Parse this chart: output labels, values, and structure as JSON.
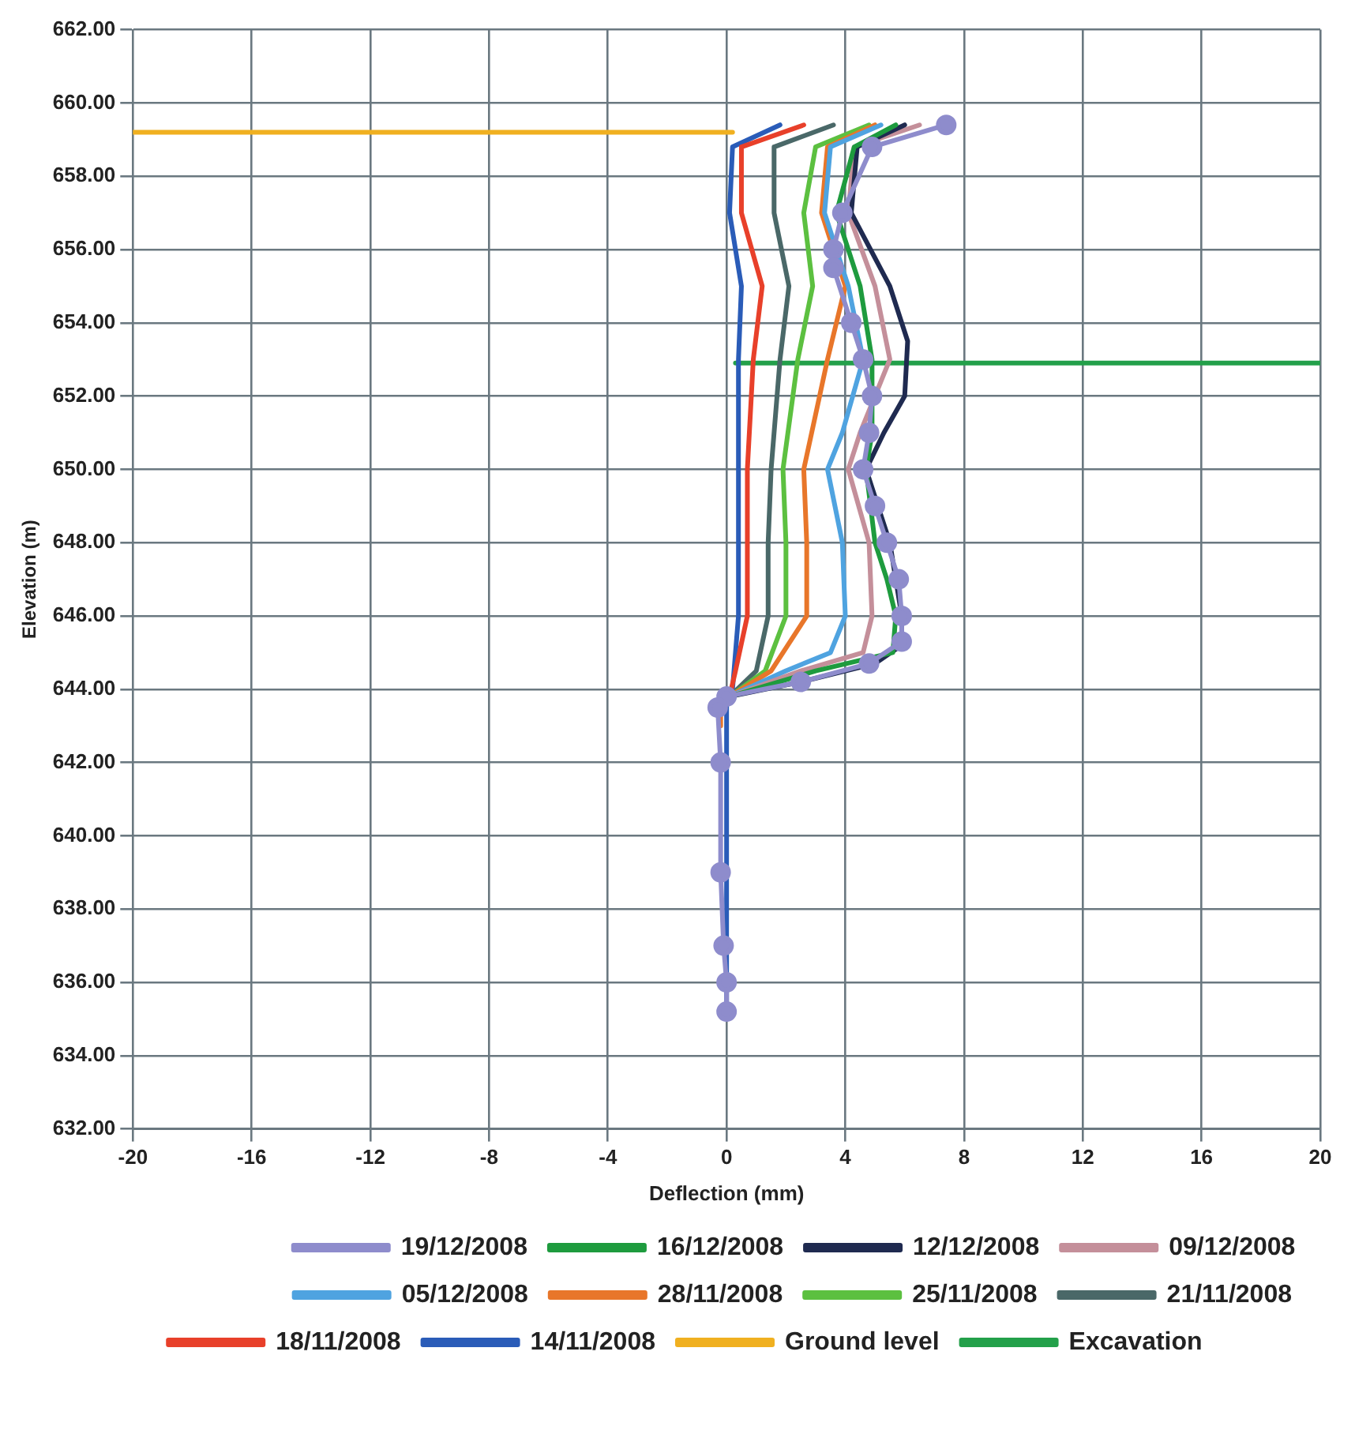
{
  "chart_data": {
    "type": "line",
    "xlabel": "Deflection (mm)",
    "ylabel": "Elevation (m)",
    "xlim": [
      -20,
      20
    ],
    "xticks": [
      -20,
      -16,
      -12,
      -8,
      -4,
      0,
      4,
      8,
      12,
      16,
      20
    ],
    "ylim": [
      632,
      662
    ],
    "yticks": [
      {
        "value": 632,
        "label": "632.00"
      },
      {
        "value": 634,
        "label": "634.00"
      },
      {
        "value": 636,
        "label": "636.00"
      },
      {
        "value": 638,
        "label": "638.00"
      },
      {
        "value": 640,
        "label": "640.00"
      },
      {
        "value": 642,
        "label": "642.00"
      },
      {
        "value": 644,
        "label": "644.00"
      },
      {
        "value": 646,
        "label": "646.00"
      },
      {
        "value": 648,
        "label": "648.00"
      },
      {
        "value": 650,
        "label": "650.00"
      },
      {
        "value": 652,
        "label": "652.00"
      },
      {
        "value": 654,
        "label": "654.00"
      },
      {
        "value": 656,
        "label": "656.00"
      },
      {
        "value": 658,
        "label": "658.00"
      },
      {
        "value": 660,
        "label": "660.00"
      },
      {
        "value": 662,
        "label": "662.00"
      }
    ],
    "grid": true,
    "legend": "bottom",
    "marker": "none",
    "line_style": "solid",
    "series": [
      {
        "name": "19/12/2008",
        "color": "#8e8ccc",
        "marker": "circle",
        "x": [
          7.4,
          4.9,
          3.9,
          3.6,
          3.6,
          4.2,
          4.6,
          4.9,
          4.8,
          4.6,
          5.0,
          5.4,
          5.8,
          5.9,
          5.9,
          4.8,
          2.5,
          0,
          -0.3,
          -0.2,
          -0.2,
          -0.1,
          0,
          0
        ],
        "values": [
          659.4,
          658.8,
          657,
          656,
          655.5,
          654,
          653,
          652,
          651,
          650,
          649,
          648,
          647,
          646,
          645.3,
          644.7,
          644.2,
          643.8,
          643.5,
          642,
          639,
          637,
          636,
          635.2
        ]
      },
      {
        "name": "16/12/2008",
        "color": "#1e9b3e",
        "x": [
          5.7,
          4.3,
          3.7,
          4.5,
          4.9,
          4.9,
          4.7,
          5.0,
          5.4,
          5.7,
          5.6,
          3.0,
          0.1
        ],
        "values": [
          659.4,
          658.8,
          657,
          655,
          653,
          651,
          650,
          648,
          647,
          646,
          645,
          644.5,
          643.8
        ]
      },
      {
        "name": "12/12/2008",
        "color": "#1f2a50",
        "x": [
          6.0,
          4.4,
          4.2,
          5.5,
          6.1,
          6.0,
          5.3,
          4.7,
          5.1,
          5.5,
          5.9,
          5.9,
          5.0,
          2.5,
          0.1
        ],
        "values": [
          659.4,
          658.8,
          657,
          655,
          653.5,
          652,
          651,
          650,
          649,
          648,
          646,
          645.2,
          644.7,
          644.2,
          643.8
        ]
      },
      {
        "name": "09/12/2008",
        "color": "#c48f9a",
        "x": [
          6.5,
          4.3,
          4.1,
          5.0,
          5.5,
          4.5,
          4.1,
          4.8,
          4.9,
          4.6,
          2.5,
          0.1
        ],
        "values": [
          659.4,
          658.8,
          657,
          655,
          653,
          651,
          650,
          648,
          646,
          645,
          644.5,
          643.8
        ]
      },
      {
        "name": "05/12/2008",
        "color": "#4fa3e0",
        "x": [
          5.2,
          3.5,
          3.3,
          4.1,
          4.6,
          3.9,
          3.4,
          3.9,
          4.0,
          3.5,
          2.0,
          0.1
        ],
        "values": [
          659.4,
          658.8,
          657,
          655,
          653,
          651,
          650,
          648,
          646,
          645,
          644.5,
          643.8
        ]
      },
      {
        "name": "28/11/2008",
        "color": "#e8762a",
        "x": [
          5.0,
          3.4,
          3.2,
          4.0,
          3.4,
          2.6,
          2.7,
          2.7,
          1.5,
          0.1,
          -0.2,
          -0.2
        ],
        "values": [
          659.4,
          658.8,
          657,
          655,
          653,
          650,
          648,
          646,
          644.5,
          643.8,
          643.5,
          643
        ]
      },
      {
        "name": "25/11/2008",
        "color": "#5cc040",
        "x": [
          4.8,
          3.0,
          2.6,
          2.9,
          2.4,
          1.9,
          2.0,
          2.0,
          1.3,
          0.1
        ],
        "values": [
          659.4,
          658.8,
          657,
          655,
          653,
          650,
          648,
          646,
          644.5,
          643.8
        ]
      },
      {
        "name": "21/11/2008",
        "color": "#4a6868",
        "x": [
          3.6,
          1.6,
          1.6,
          2.1,
          1.8,
          1.5,
          1.4,
          1.4,
          1.0,
          0.1
        ],
        "values": [
          659.4,
          658.8,
          657,
          655,
          653,
          650,
          648,
          646,
          644.5,
          643.8
        ]
      },
      {
        "name": "18/11/2008",
        "color": "#e8402a",
        "x": [
          2.6,
          0.5,
          0.5,
          1.2,
          0.9,
          0.7,
          0.7,
          0.3,
          0.1
        ],
        "values": [
          659.4,
          658.8,
          657,
          655,
          653,
          650,
          646,
          644.5,
          643.8
        ]
      },
      {
        "name": "14/11/2008",
        "color": "#2a5cb8",
        "x": [
          1.8,
          0.2,
          0.1,
          0.5,
          0.4,
          0.4,
          0.2,
          0,
          0
        ],
        "values": [
          659.4,
          658.8,
          657,
          655,
          653,
          646,
          644,
          643.8,
          635.2
        ]
      },
      {
        "name": "Ground level",
        "color": "#f0b020",
        "x": [
          -20,
          0.2
        ],
        "values": [
          659.2,
          659.2
        ]
      },
      {
        "name": "Excavation",
        "color": "#23a04a",
        "x": [
          0.3,
          20
        ],
        "values": [
          652.9,
          652.9
        ]
      }
    ]
  }
}
